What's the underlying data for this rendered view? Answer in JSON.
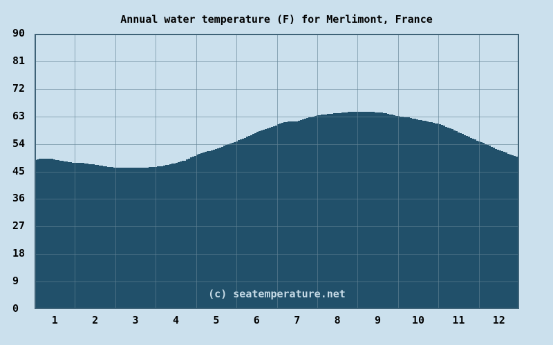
{
  "title": "Annual water temperature (F) for Merlimont, France",
  "watermark": "(c) seatemperature.net",
  "colors": {
    "background": "#cbe0ed",
    "area_fill": "#21506a",
    "gridline": "rgba(99,131,149,0.62)",
    "plot_border": "#3e6277",
    "axis_text": "#000000",
    "title_text": "#000000",
    "watermark_text": "#c7dbe7"
  },
  "chart_data": {
    "type": "area",
    "title": "Annual water temperature (F) for Merlimont, France",
    "unit": "F",
    "xlabel": "",
    "ylabel": "",
    "ylim": [
      0,
      90
    ],
    "y_tick_step": 9,
    "y_tick_labels": [
      "90",
      "81",
      "72",
      "63",
      "54",
      "45",
      "36",
      "27",
      "18",
      "9",
      "0"
    ],
    "categories": [
      "1",
      "2",
      "3",
      "4",
      "5",
      "6",
      "7",
      "8",
      "9",
      "10",
      "11",
      "12"
    ],
    "values": [
      48.7,
      47.2,
      46.2,
      47.9,
      52.5,
      57.9,
      62.3,
      64.1,
      64.3,
      61.9,
      57.7,
      51.9
    ],
    "grid": true,
    "legend": false,
    "curve_points": [
      [
        0.0,
        48.8
      ],
      [
        0.15,
        49.2
      ],
      [
        0.3,
        49.3
      ],
      [
        0.45,
        49.0
      ],
      [
        0.6,
        48.6
      ],
      [
        0.8,
        48.1
      ],
      [
        1.0,
        47.7
      ],
      [
        1.15,
        47.9
      ],
      [
        1.3,
        47.5
      ],
      [
        1.5,
        47.2
      ],
      [
        1.7,
        46.7
      ],
      [
        1.9,
        46.4
      ],
      [
        2.1,
        46.2
      ],
      [
        2.3,
        46.3
      ],
      [
        2.5,
        46.2
      ],
      [
        2.7,
        46.3
      ],
      [
        2.9,
        46.4
      ],
      [
        3.1,
        46.7
      ],
      [
        3.3,
        47.2
      ],
      [
        3.5,
        47.9
      ],
      [
        3.7,
        48.6
      ],
      [
        3.9,
        49.9
      ],
      [
        4.1,
        50.9
      ],
      [
        4.3,
        51.7
      ],
      [
        4.5,
        52.5
      ],
      [
        4.7,
        53.5
      ],
      [
        5.0,
        55.0
      ],
      [
        5.25,
        56.4
      ],
      [
        5.5,
        57.9
      ],
      [
        5.75,
        59.2
      ],
      [
        6.0,
        60.3
      ],
      [
        6.15,
        61.0
      ],
      [
        6.3,
        61.4
      ],
      [
        6.45,
        61.3
      ],
      [
        6.6,
        62.0
      ],
      [
        6.75,
        62.5
      ],
      [
        7.0,
        63.4
      ],
      [
        7.25,
        63.8
      ],
      [
        7.5,
        64.1
      ],
      [
        7.75,
        64.4
      ],
      [
        8.0,
        64.5
      ],
      [
        8.2,
        64.5
      ],
      [
        8.4,
        64.4
      ],
      [
        8.6,
        64.2
      ],
      [
        8.8,
        63.6
      ],
      [
        9.0,
        63.1
      ],
      [
        9.25,
        62.6
      ],
      [
        9.5,
        61.9
      ],
      [
        9.75,
        61.2
      ],
      [
        10.0,
        60.5
      ],
      [
        10.2,
        59.5
      ],
      [
        10.35,
        58.6
      ],
      [
        10.5,
        57.7
      ],
      [
        10.75,
        56.2
      ],
      [
        11.0,
        54.8
      ],
      [
        11.2,
        53.7
      ],
      [
        11.35,
        52.7
      ],
      [
        11.5,
        51.9
      ],
      [
        11.7,
        50.9
      ],
      [
        11.85,
        50.2
      ],
      [
        12.0,
        49.6
      ]
    ]
  }
}
